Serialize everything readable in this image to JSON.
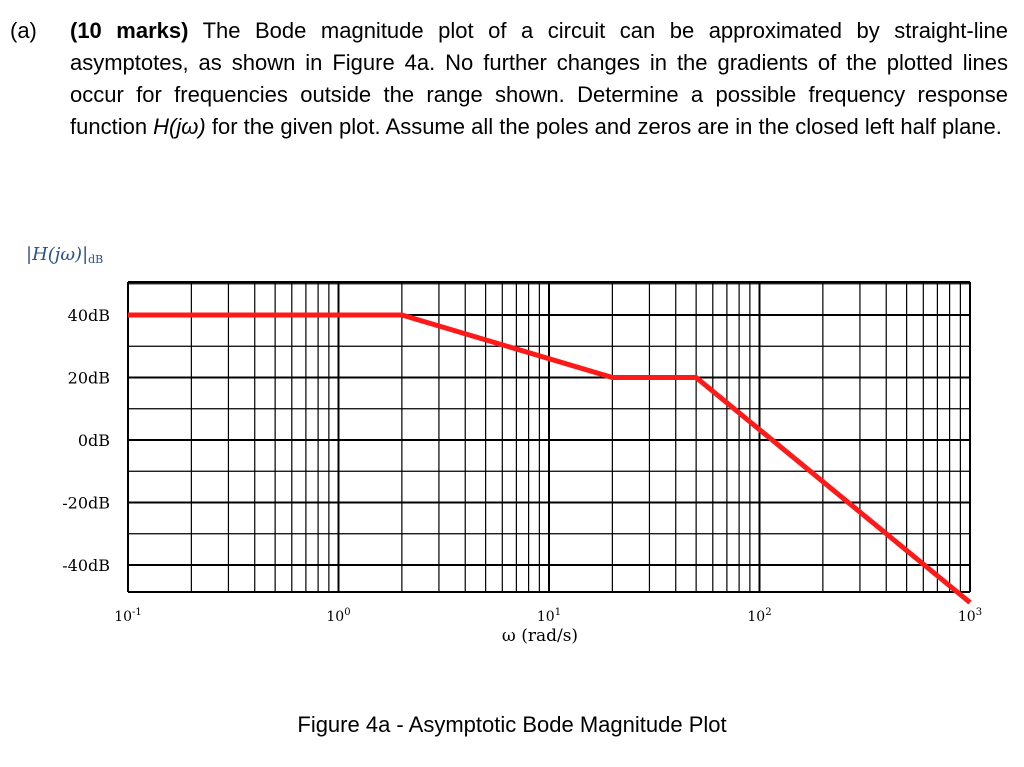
{
  "question": {
    "label": "(a)",
    "marks": "(10 marks)",
    "text_part1": " The Bode magnitude plot of a circuit can be approximated by straight-line asymptotes, as shown in Figure 4a. No further changes in the gradients of the plotted lines occur for frequencies outside the range shown. Determine a possible frequency response function ",
    "func": "H(jω)",
    "text_part2": " for the given plot. Assume all the poles and zeros are in the closed left half plane."
  },
  "figure_caption": "Figure 4a - Asymptotic Bode Magnitude Plot",
  "colors": {
    "trace": "#ff1a1a",
    "grid": "#000000",
    "ylabel": "#2b4f8a"
  },
  "chart_data": {
    "type": "line",
    "title": "",
    "ylabel": "|H(jω)|",
    "ylabel_sub": "dB",
    "xlabel": "ω (rad/s)",
    "x_scale": "log",
    "xlim": [
      0.1,
      1000
    ],
    "ylim": [
      -40,
      40
    ],
    "x_ticks": [
      "10-1",
      "100",
      "101",
      "102",
      "103"
    ],
    "y_ticks": [
      "40dB",
      "20dB",
      "0dB",
      "-20dB",
      "-40dB"
    ],
    "grid": true,
    "series": [
      {
        "x": [
          0.1,
          2,
          20,
          50,
          1000
        ],
        "y": [
          40,
          40,
          20,
          20,
          -52
        ]
      }
    ]
  }
}
